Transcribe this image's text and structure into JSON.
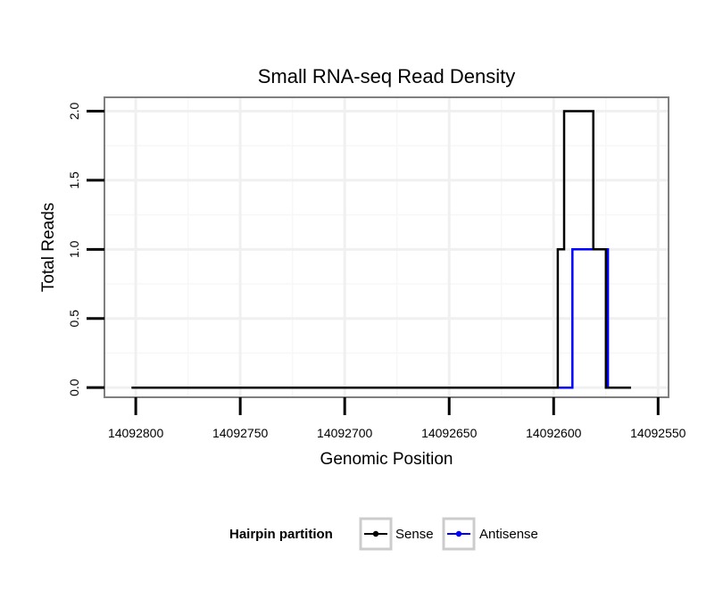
{
  "chart_data": {
    "type": "line",
    "title": "Small RNA-seq Read Density",
    "xlabel": "Genomic Position",
    "ylabel": "Total Reads",
    "xlim": [
      14092815,
      14092545
    ],
    "x_reversed": true,
    "ylim": [
      -0.07,
      2.1
    ],
    "x_ticks": [
      14092800,
      14092750,
      14092700,
      14092650,
      14092600,
      14092550
    ],
    "x_tick_labels": [
      "14092800",
      "14092750",
      "14092700",
      "14092650",
      "14092600",
      "14092550"
    ],
    "y_ticks": [
      0,
      0.5,
      1,
      1.5,
      2
    ],
    "y_tick_labels": [
      "0.0",
      "0.5",
      "1.0",
      "1.5",
      "2.0"
    ],
    "grid": true,
    "legend": {
      "title": "Hairpin partition",
      "position": "bottom"
    },
    "series": [
      {
        "name": "Sense",
        "color": "#000000",
        "step": true,
        "x": [
          14092802,
          14092598,
          14092598,
          14092595,
          14092595,
          14092581,
          14092581,
          14092575,
          14092575,
          14092563
        ],
        "values": [
          0,
          0,
          1,
          1,
          2,
          2,
          1,
          1,
          0,
          0
        ]
      },
      {
        "name": "Antisense",
        "color": "#0000ff",
        "step": true,
        "x": [
          14092802,
          14092591,
          14092591,
          14092574,
          14092574,
          14092563
        ],
        "values": [
          0,
          0,
          1,
          1,
          0,
          0
        ]
      }
    ]
  }
}
